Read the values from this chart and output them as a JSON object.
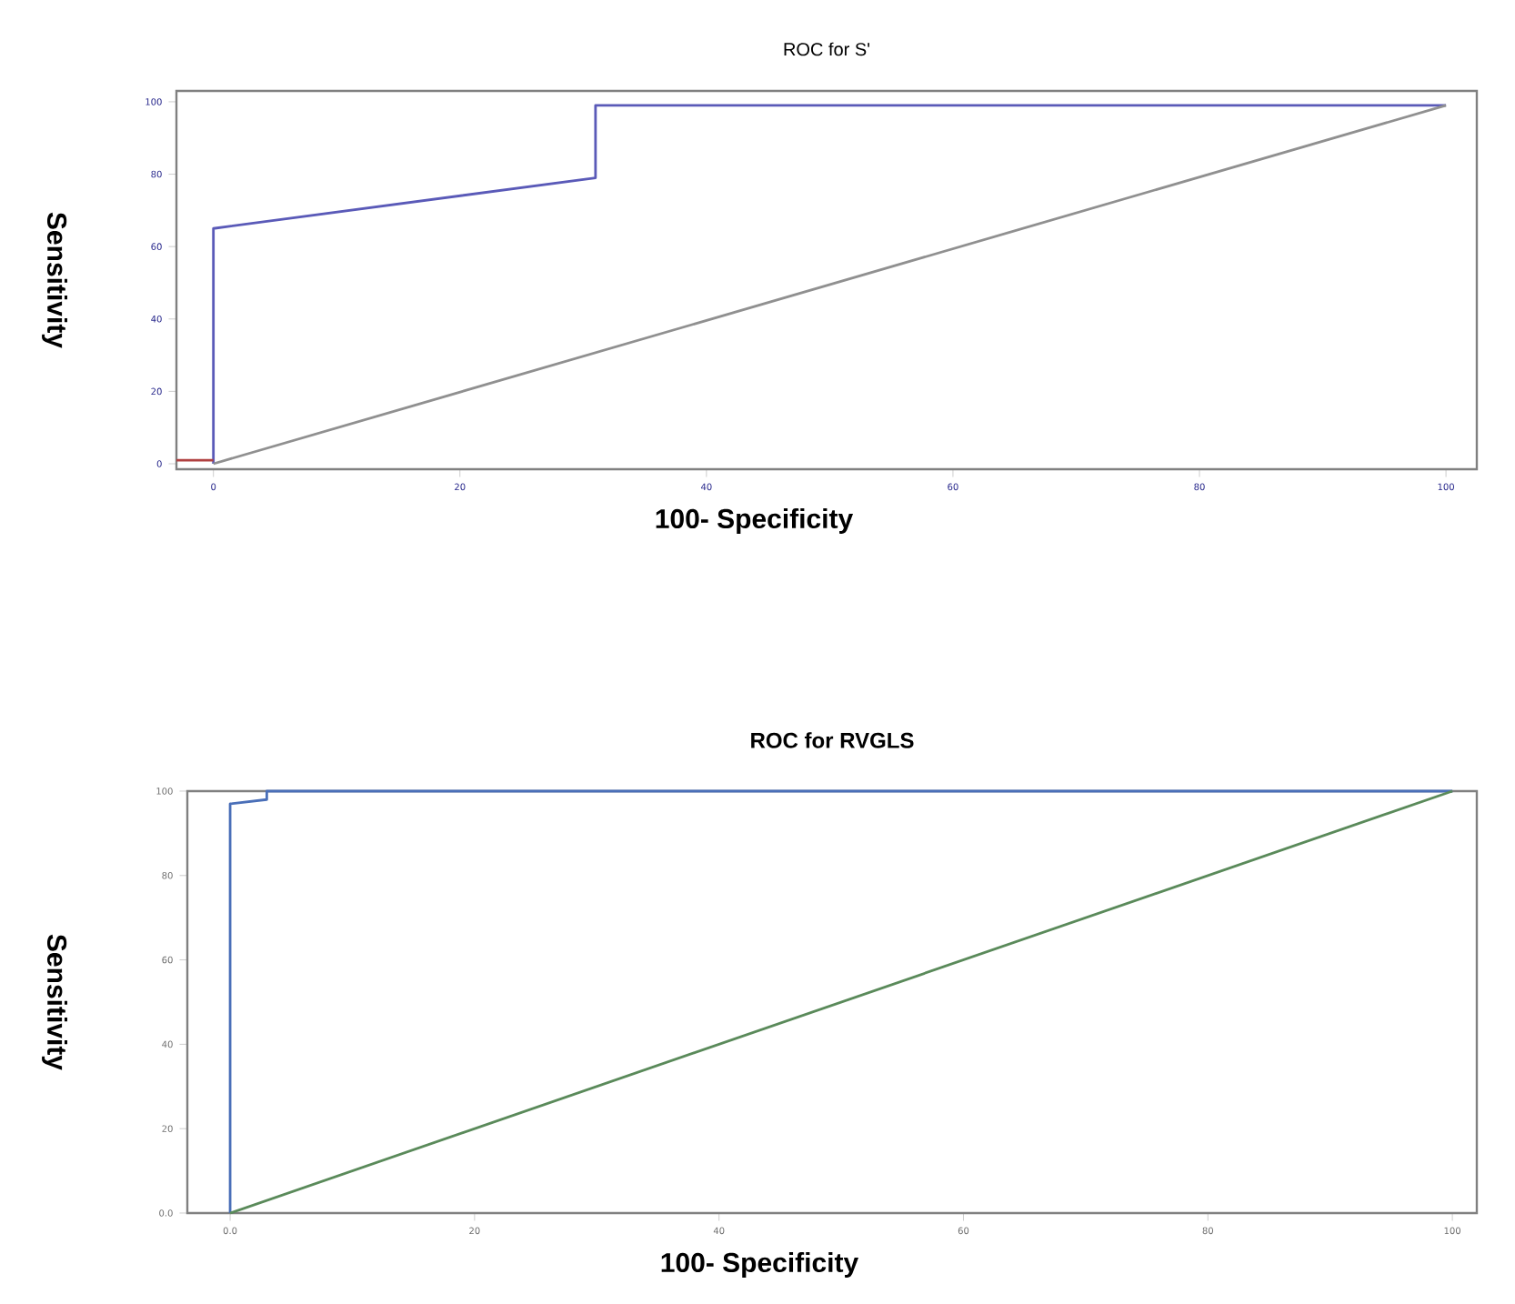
{
  "chart_data": [
    {
      "type": "line",
      "title": "ROC for S'",
      "xlabel": "100- Specificity",
      "ylabel": "Sensitivity",
      "xlim": [
        -3,
        102.5
      ],
      "ylim": [
        -1.5,
        103
      ],
      "xticks": [
        0,
        20,
        40,
        60,
        80,
        100
      ],
      "yticks": [
        0,
        20,
        40,
        60,
        80,
        100
      ],
      "grid": false,
      "marker": "none",
      "line_style": "solid",
      "series": [
        {
          "color": "#5a5ab8",
          "x": [
            0,
            0,
            31,
            31,
            100
          ],
          "values": [
            0,
            65,
            79,
            99,
            99
          ]
        },
        {
          "color": "#909090",
          "x": [
            0,
            100
          ],
          "values": [
            0,
            99
          ]
        },
        {
          "color": "#b04040",
          "x": [
            -3,
            0
          ],
          "values": [
            1,
            1
          ]
        }
      ]
    },
    {
      "type": "line",
      "title": "**ROC for RVGLS**",
      "xlabel": "100- Specificity",
      "ylabel": "Sensitivity",
      "xlim": [
        -3.5,
        102
      ],
      "ylim": [
        0,
        100
      ],
      "xticks": [
        {
          "value": 0,
          "label": "0.0"
        },
        20,
        40,
        60,
        80,
        100
      ],
      "yticks": [
        {
          "value": 0,
          "label": "0.0"
        },
        20,
        40,
        60,
        80,
        100
      ],
      "grid": false,
      "marker": "none",
      "line_style": "solid",
      "series": [
        {
          "color": "#4a6fb8",
          "x": [
            0,
            0,
            3,
            3,
            100
          ],
          "values": [
            0,
            97,
            98,
            100,
            100
          ]
        },
        {
          "color": "#5a8a5a",
          "x": [
            0,
            100
          ],
          "values": [
            0,
            100
          ]
        }
      ]
    }
  ]
}
